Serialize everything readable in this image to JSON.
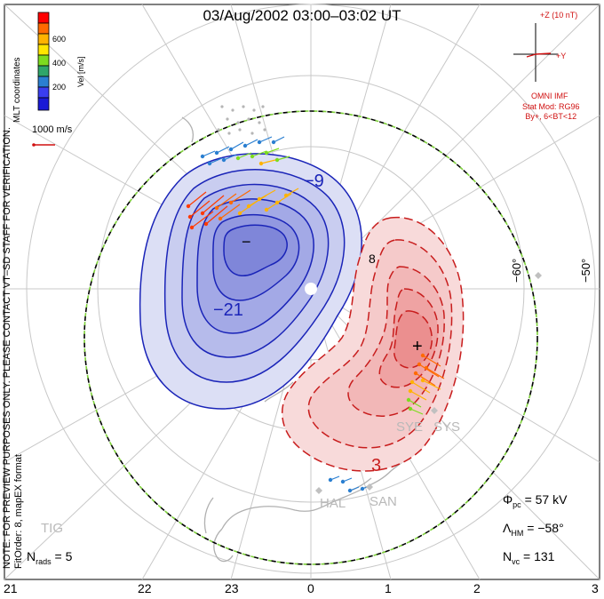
{
  "title": "03/Aug/2002 03:00–03:02 UT",
  "colors": {
    "negative_fill": "#8f95e6",
    "negative_line": "#1a24b8",
    "positive_fill": "#f2a7a7",
    "positive_line": "#c81d1d",
    "imf": "#d01010",
    "hmb": "#7fd23b",
    "grid": "#c8c8c8",
    "coast": "#b5b5b5"
  },
  "imf": {
    "z_label": "+Z (10 nT)",
    "y_label": "+Y",
    "source_label": "OMNI IMF",
    "stat_mod_line1": "Stat Mod: RG96",
    "stat_mod_line2": "By+, 6<BT<12"
  },
  "colorbar": {
    "unit_label": "Vel [m/s]",
    "coord_label": "MLT coordinates",
    "ticks": [
      "600",
      "400",
      "200"
    ],
    "colors": [
      "#ff0000",
      "#ff6a00",
      "#ffb300",
      "#ffe600",
      "#7ddc1f",
      "#2fa66a",
      "#2a7fd1",
      "#3a3ef0",
      "#1a1ad6"
    ]
  },
  "vector_scale": {
    "label": "1000 m/s"
  },
  "side_notes": {
    "preview": "NOTE: FOR PREVIEW PURPOSES ONLY. PLEASE CONTACT VT–SD STAFF FOR VERIFICATION.",
    "fit_order": "FitOrder: 8, mapEX format"
  },
  "latitude_labels": [
    "−60°",
    "−50°"
  ],
  "mlt_labels": [
    "21",
    "22",
    "23",
    "0",
    "1",
    "2",
    "3"
  ],
  "contours": {
    "negative_label": "−9",
    "negative_label_inner": "−21",
    "positive_label": "3",
    "lat_fragment": "8",
    "min_marker": "−",
    "max_marker": "+"
  },
  "radars": [
    "SYE",
    "SYS",
    "HAL",
    "SAN",
    "TIG"
  ],
  "stats": {
    "phi_pc_symbol": "Φ",
    "phi_pc_sub": "pc",
    "phi_pc_value": " = 57 kV",
    "lambda_hm_symbol": "Λ",
    "lambda_hm_sub": "HM",
    "lambda_hm_value": " = −58°",
    "n_vc_symbol": "N",
    "n_vc_sub": "vc",
    "n_vc_value": " = 131",
    "n_rads_symbol": "N",
    "n_rads_sub": "rads",
    "n_rads_value": " = 5"
  }
}
